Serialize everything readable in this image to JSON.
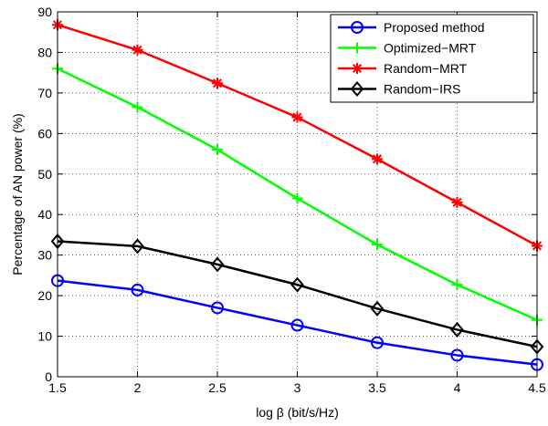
{
  "chart_data": {
    "type": "line",
    "x": [
      1.5,
      2,
      2.5,
      3,
      3.5,
      4,
      4.5
    ],
    "xlim": [
      1.5,
      4.5
    ],
    "ylim": [
      0,
      90
    ],
    "xticks": [
      "1.5",
      "2",
      "2.5",
      "3",
      "3.5",
      "4",
      "4.5"
    ],
    "yticks": [
      "0",
      "10",
      "20",
      "30",
      "40",
      "50",
      "60",
      "70",
      "80",
      "90"
    ],
    "xlabel": "log β (bit/s/Hz)",
    "ylabel": "Percentage of AN power (%)",
    "grid": true,
    "legend_position": "top-right",
    "series": [
      {
        "name": "Proposed method",
        "color": "#0000ff",
        "marker": "circle",
        "values": [
          23.7,
          21.4,
          17.0,
          12.7,
          8.4,
          5.3,
          3.0
        ]
      },
      {
        "name": "Optimized−MRT",
        "color": "#00ff00",
        "marker": "plus",
        "values": [
          76.0,
          66.5,
          56.0,
          44.0,
          32.6,
          22.7,
          14.0
        ]
      },
      {
        "name": "Random−MRT",
        "color": "#ff0000",
        "marker": "asterisk",
        "values": [
          86.8,
          80.6,
          72.4,
          64.0,
          53.7,
          43.0,
          32.3
        ]
      },
      {
        "name": "Random−IRS",
        "color": "#000000",
        "marker": "diamond",
        "values": [
          33.4,
          32.2,
          27.7,
          22.7,
          16.8,
          11.6,
          7.4
        ]
      }
    ]
  }
}
